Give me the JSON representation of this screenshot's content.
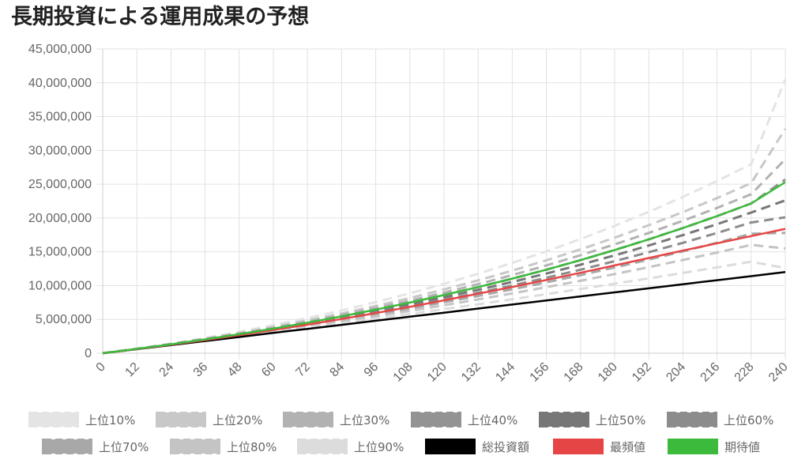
{
  "page": {
    "title": "長期投資による運用成果の予想"
  },
  "chart_data": {
    "type": "line",
    "title": "長期投資による運用成果の予想",
    "xlabel": "",
    "ylabel": "",
    "x": [
      0,
      12,
      24,
      36,
      48,
      60,
      72,
      84,
      96,
      108,
      120,
      132,
      144,
      156,
      168,
      180,
      192,
      204,
      216,
      228,
      240
    ],
    "xticks": [
      "0",
      "12",
      "24",
      "36",
      "48",
      "60",
      "72",
      "84",
      "96",
      "108",
      "120",
      "132",
      "144",
      "156",
      "168",
      "180",
      "192",
      "204",
      "216",
      "228",
      "240"
    ],
    "ylim": [
      0,
      45000000
    ],
    "yticks": [
      "0",
      "5,000,000",
      "10,000,000",
      "15,000,000",
      "20,000,000",
      "25,000,000",
      "30,000,000",
      "35,000,000",
      "40,000,000",
      "45,000,000"
    ],
    "grid": true,
    "legend_position": "bottom",
    "series": [
      {
        "name": "上位10%",
        "color": "#e4e4e4",
        "dashed": true,
        "values": [
          0,
          680000,
          1430000,
          2260000,
          3170000,
          4150000,
          5200000,
          6330000,
          7550000,
          8860000,
          10260000,
          11760000,
          13360000,
          15070000,
          16890000,
          18840000,
          20910000,
          23120000,
          25470000,
          27970000,
          40500000
        ]
      },
      {
        "name": "上位20%",
        "color": "#c8c8c8",
        "dashed": true,
        "values": [
          0,
          660000,
          1370000,
          2150000,
          2980000,
          3880000,
          4850000,
          5880000,
          6990000,
          8170000,
          9430000,
          10780000,
          12210000,
          13740000,
          15360000,
          17090000,
          18930000,
          20880000,
          22950000,
          25150000,
          33200000
        ]
      },
      {
        "name": "上位30%",
        "color": "#b2b2b2",
        "dashed": true,
        "values": [
          0,
          650000,
          1340000,
          2090000,
          2890000,
          3750000,
          4660000,
          5640000,
          6680000,
          7790000,
          8970000,
          10220000,
          11560000,
          12980000,
          14490000,
          16090000,
          17790000,
          19590000,
          21500000,
          23520000,
          28700000
        ]
      },
      {
        "name": "上位40%",
        "color": "#939393",
        "dashed": true,
        "values": [
          0,
          645000,
          1320000,
          2050000,
          2820000,
          3640000,
          4520000,
          5450000,
          6440000,
          7490000,
          8600000,
          9780000,
          11030000,
          12360000,
          13770000,
          15260000,
          16840000,
          18510000,
          20280000,
          22150000,
          25700000
        ]
      },
      {
        "name": "上位50%",
        "color": "#777777",
        "dashed": true,
        "values": [
          0,
          640000,
          1300000,
          2010000,
          2760000,
          3550000,
          4390000,
          5280000,
          6220000,
          7210000,
          8260000,
          9370000,
          10540000,
          11780000,
          13090000,
          14470000,
          15930000,
          17470000,
          19090000,
          20800000,
          22600000
        ]
      },
      {
        "name": "上位60%",
        "color": "#8c8c8c",
        "dashed": true,
        "values": [
          0,
          635000,
          1280000,
          1970000,
          2700000,
          3460000,
          4260000,
          5110000,
          6000000,
          6930000,
          7910000,
          8940000,
          10020000,
          11160000,
          12360000,
          13620000,
          14940000,
          16330000,
          17790000,
          19330000,
          20100000
        ]
      },
      {
        "name": "上位70%",
        "color": "#a8a8a8",
        "dashed": true,
        "values": [
          0,
          630000,
          1260000,
          1930000,
          2630000,
          3360000,
          4120000,
          4920000,
          5750000,
          6620000,
          7530000,
          8470000,
          9460000,
          10490000,
          11560000,
          12680000,
          13850000,
          15070000,
          16340000,
          17670000,
          17800000
        ]
      },
      {
        "name": "上位80%",
        "color": "#c4c4c4",
        "dashed": true,
        "values": [
          0,
          620000,
          1240000,
          1880000,
          2550000,
          3240000,
          3960000,
          4700000,
          5470000,
          6270000,
          7100000,
          7960000,
          8850000,
          9770000,
          10720000,
          11710000,
          12730000,
          13790000,
          14890000,
          16030000,
          15500000
        ]
      },
      {
        "name": "上位90%",
        "color": "#dcdcdc",
        "dashed": true,
        "values": [
          0,
          610000,
          1210000,
          1830000,
          2460000,
          3100000,
          3760000,
          4430000,
          5110000,
          5810000,
          6520000,
          7240000,
          7980000,
          8730000,
          9500000,
          10280000,
          11070000,
          11880000,
          12700000,
          13540000,
          12600000
        ]
      },
      {
        "name": "総投資額",
        "color": "#000000",
        "dashed": false,
        "values": [
          0,
          600000,
          1200000,
          1800000,
          2400000,
          3000000,
          3600000,
          4200000,
          4800000,
          5400000,
          6000000,
          6600000,
          7200000,
          7800000,
          8400000,
          9000000,
          9600000,
          10200000,
          10800000,
          11400000,
          12000000
        ]
      },
      {
        "name": "最頻値",
        "color": "#e64545",
        "dashed": false,
        "values": [
          0,
          620000,
          1260000,
          1940000,
          2660000,
          3420000,
          4220000,
          5060000,
          5940000,
          6860000,
          7820000,
          8800000,
          9800000,
          10840000,
          11900000,
          12980000,
          14080000,
          15180000,
          16260000,
          17320000,
          18400000
        ]
      },
      {
        "name": "期待値",
        "color": "#3cba3c",
        "dashed": false,
        "values": [
          0,
          645000,
          1320000,
          2050000,
          2820000,
          3640000,
          4520000,
          5450000,
          6440000,
          7490000,
          8600000,
          9780000,
          11030000,
          12360000,
          13770000,
          15260000,
          16840000,
          18510000,
          20280000,
          22150000,
          25300000
        ]
      }
    ]
  }
}
